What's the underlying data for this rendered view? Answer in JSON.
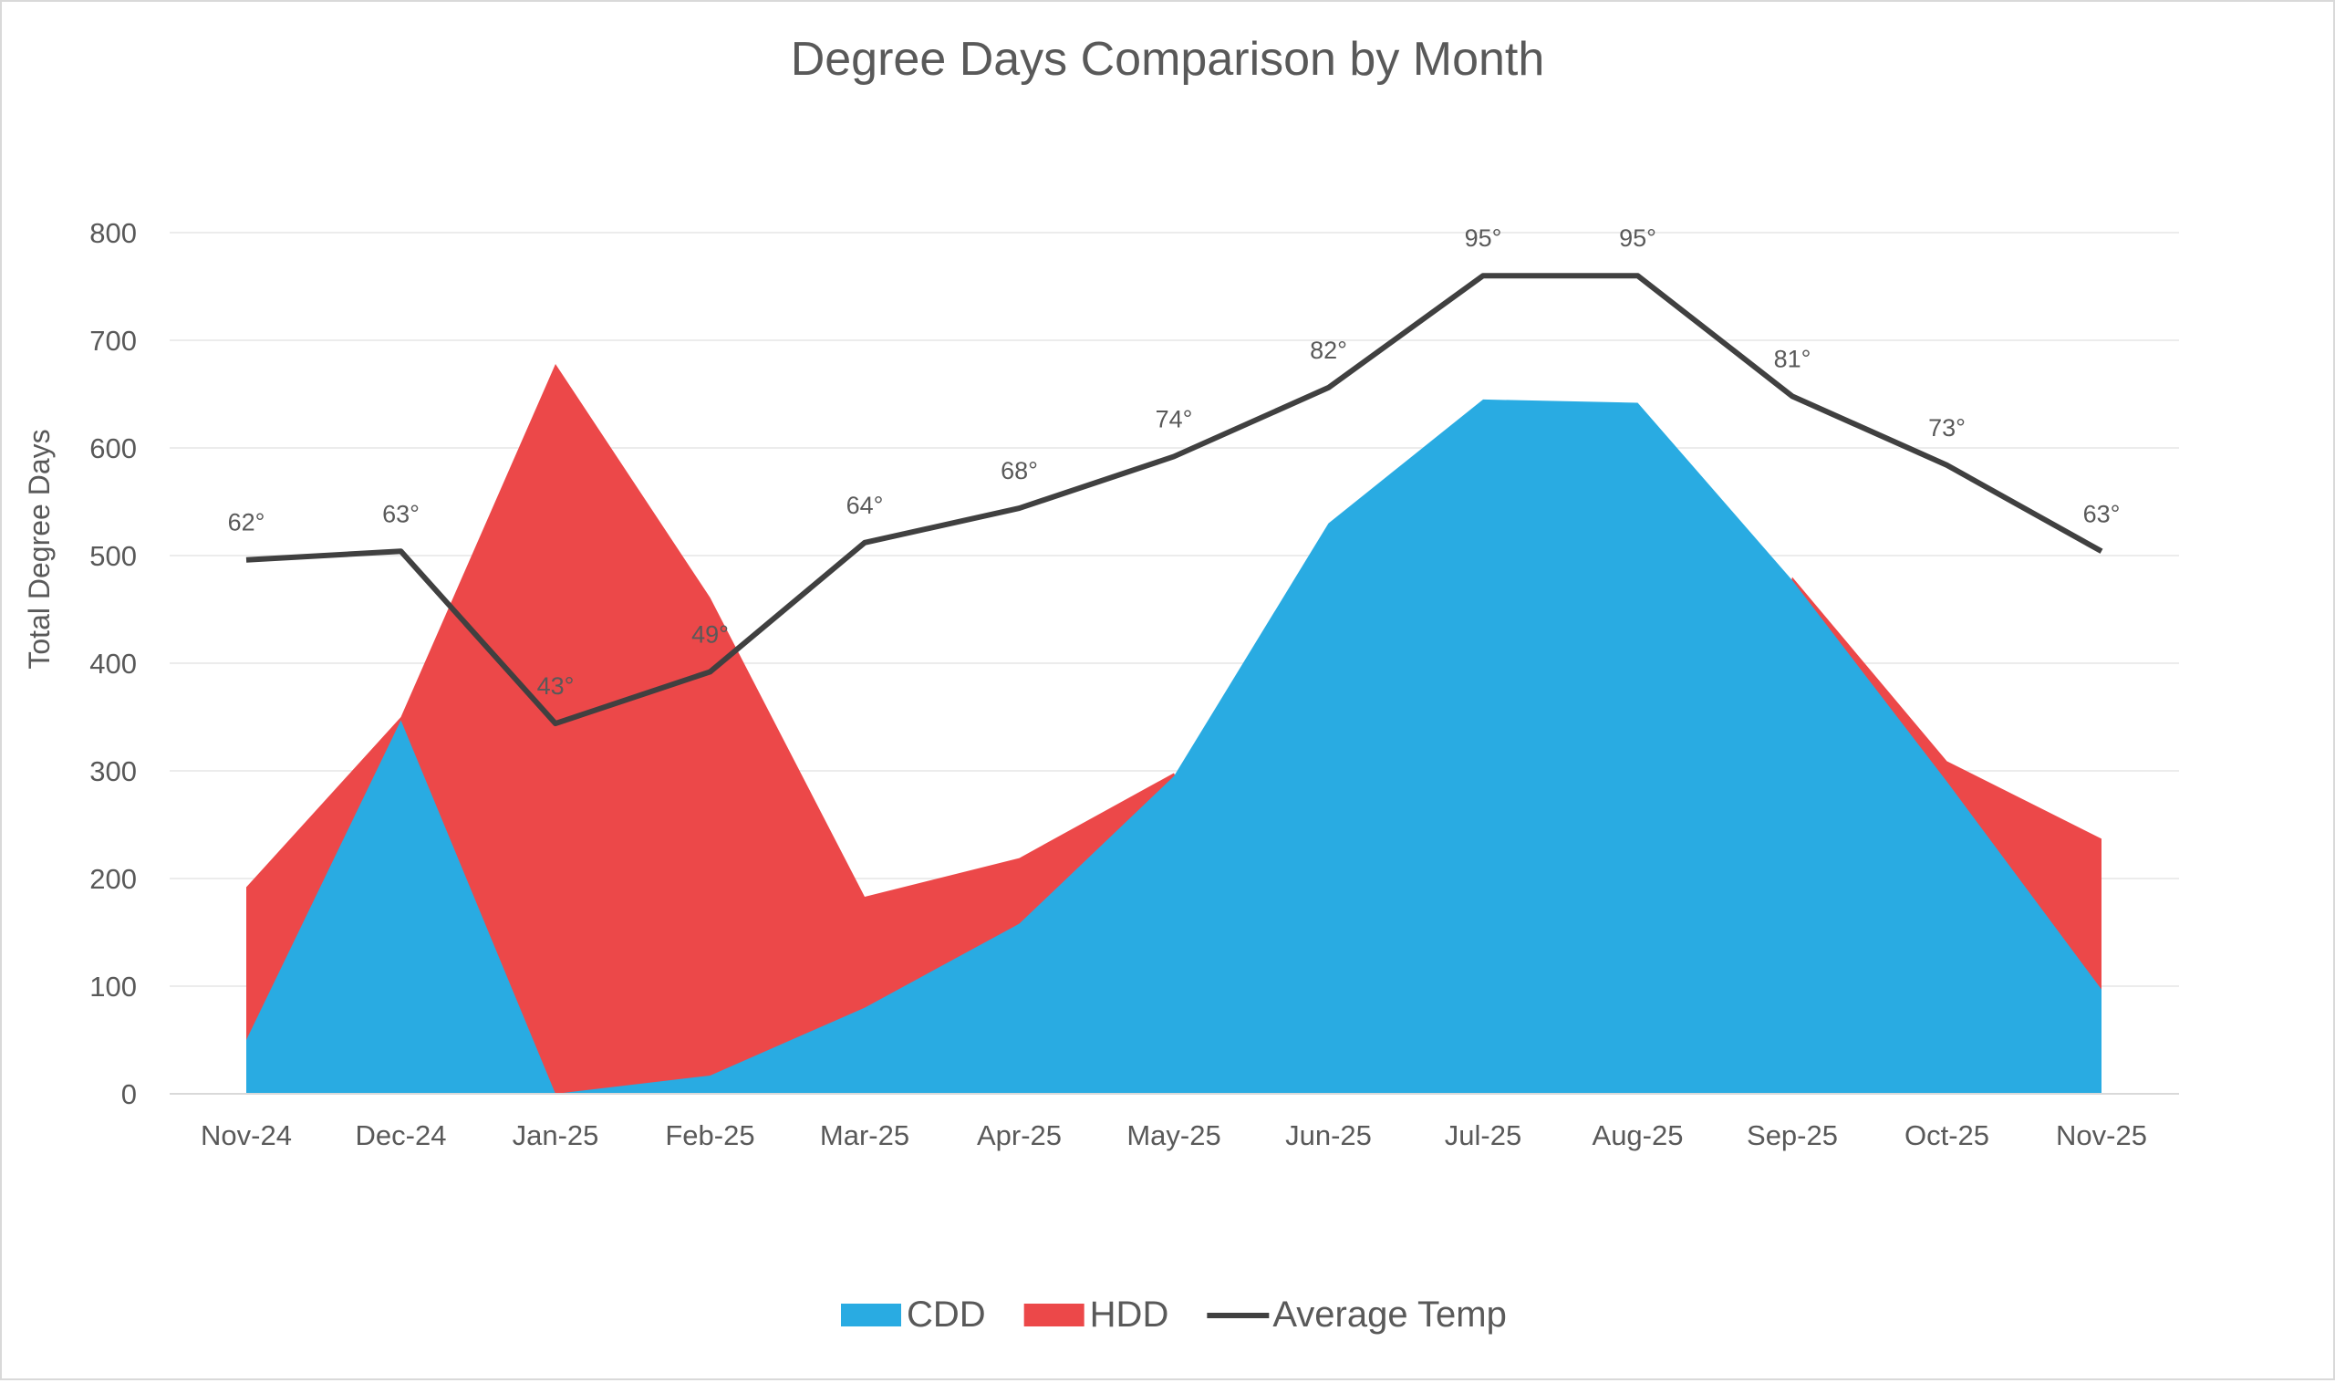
{
  "chart_data": {
    "type": "area",
    "title": "Degree Days Comparison by Month",
    "ylabel": "Total Degree Days",
    "xlabel": "",
    "ylim": [
      0,
      800
    ],
    "yticks": [
      0,
      100,
      200,
      300,
      400,
      500,
      600,
      700,
      800
    ],
    "secondary_ylim": [
      0,
      100
    ],
    "grid": true,
    "legend_position": "bottom",
    "categories": [
      "Nov-24",
      "Dec-24",
      "Jan-25",
      "Feb-25",
      "Mar-25",
      "Apr-25",
      "May-25",
      "Jun-25",
      "Jul-25",
      "Aug-25",
      "Sep-25",
      "Oct-25",
      "Nov-25"
    ],
    "series": [
      {
        "name": "CDD",
        "type": "area",
        "color": "#29abe2",
        "values": [
          50,
          347,
          0,
          17,
          80,
          158,
          295,
          530,
          645,
          642,
          477,
          290,
          97
        ]
      },
      {
        "name": "HDD",
        "type": "area",
        "color": "#ec4849",
        "values": [
          192,
          350,
          678,
          461,
          183,
          219,
          298,
          0,
          0,
          0,
          480,
          309,
          237
        ]
      },
      {
        "name": "Average Temp",
        "type": "line",
        "axis": "secondary",
        "color": "#404040",
        "values": [
          62,
          63,
          43,
          49,
          64,
          68,
          74,
          82,
          95,
          95,
          81,
          73,
          63
        ],
        "labels": [
          "62°",
          "63°",
          "43°",
          "49°",
          "64°",
          "68°",
          "74°",
          "82°",
          "95°",
          "95°",
          "81°",
          "73°",
          "63°"
        ]
      }
    ]
  }
}
